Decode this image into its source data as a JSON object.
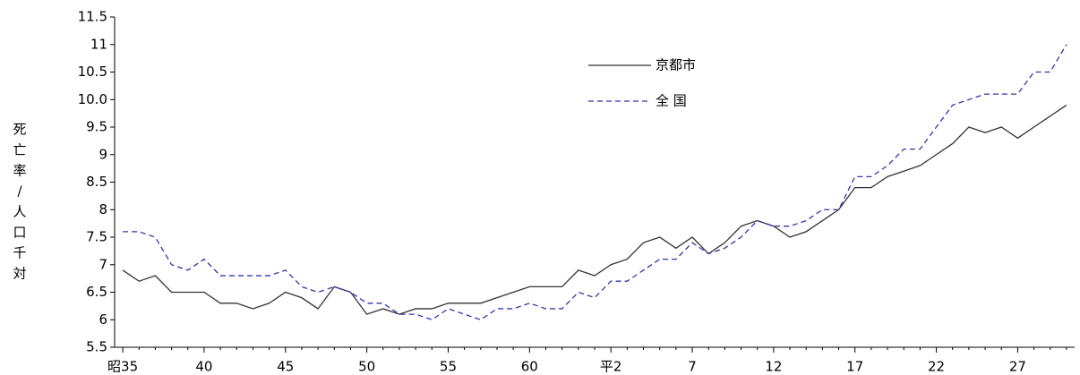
{
  "chart_data": {
    "type": "line",
    "y_label": "死亡率/人口千対",
    "categories": [
      "昭35",
      null,
      null,
      null,
      null,
      "40",
      null,
      null,
      null,
      null,
      "45",
      null,
      null,
      null,
      null,
      "50",
      null,
      null,
      null,
      null,
      "55",
      null,
      null,
      null,
      null,
      "60",
      null,
      null,
      null,
      null,
      "平2",
      null,
      null,
      null,
      null,
      "7",
      null,
      null,
      null,
      null,
      "12",
      null,
      null,
      null,
      null,
      "17",
      null,
      null,
      null,
      null,
      "22",
      null,
      null,
      null,
      null,
      "27",
      null,
      null,
      null
    ],
    "series": [
      {
        "name": "京都市",
        "color": "#333333",
        "dash": false,
        "values": [
          6.9,
          6.7,
          6.8,
          6.5,
          6.5,
          6.5,
          6.3,
          6.3,
          6.2,
          6.3,
          6.5,
          6.4,
          6.2,
          6.6,
          6.5,
          6.1,
          6.2,
          6.1,
          6.2,
          6.2,
          6.3,
          6.3,
          6.3,
          6.4,
          6.5,
          6.6,
          6.6,
          6.6,
          6.9,
          6.8,
          7.0,
          7.1,
          7.4,
          7.5,
          7.3,
          7.5,
          7.2,
          7.4,
          7.7,
          7.8,
          7.7,
          7.5,
          7.6,
          7.8,
          8.0,
          8.4,
          8.4,
          8.6,
          8.7,
          8.8,
          9.0,
          9.2,
          9.5,
          9.4,
          9.5,
          9.3,
          9.5,
          9.7,
          9.9
        ]
      },
      {
        "name": "全 国",
        "color": "#3535b0",
        "dash": true,
        "values": [
          7.6,
          7.6,
          7.5,
          7.0,
          6.9,
          7.1,
          6.8,
          6.8,
          6.8,
          6.8,
          6.9,
          6.6,
          6.5,
          6.6,
          6.5,
          6.3,
          6.3,
          6.1,
          6.1,
          6.0,
          6.2,
          6.1,
          6.0,
          6.2,
          6.2,
          6.3,
          6.2,
          6.2,
          6.5,
          6.4,
          6.7,
          6.7,
          6.9,
          7.1,
          7.1,
          7.4,
          7.2,
          7.3,
          7.5,
          7.8,
          7.7,
          7.7,
          7.8,
          8.0,
          8.0,
          8.6,
          8.6,
          8.8,
          9.1,
          9.1,
          9.5,
          9.9,
          10.0,
          10.1,
          10.1,
          10.1,
          10.5,
          10.5,
          11.0
        ]
      }
    ],
    "ylim": [
      5.5,
      11.5
    ],
    "yticks": [
      5.5,
      6,
      6.5,
      7,
      7.5,
      8,
      8.5,
      9,
      9.5,
      {
        "value": 10,
        "label": "10.0"
      },
      10.5,
      11,
      11.5
    ],
    "grid": false
  }
}
